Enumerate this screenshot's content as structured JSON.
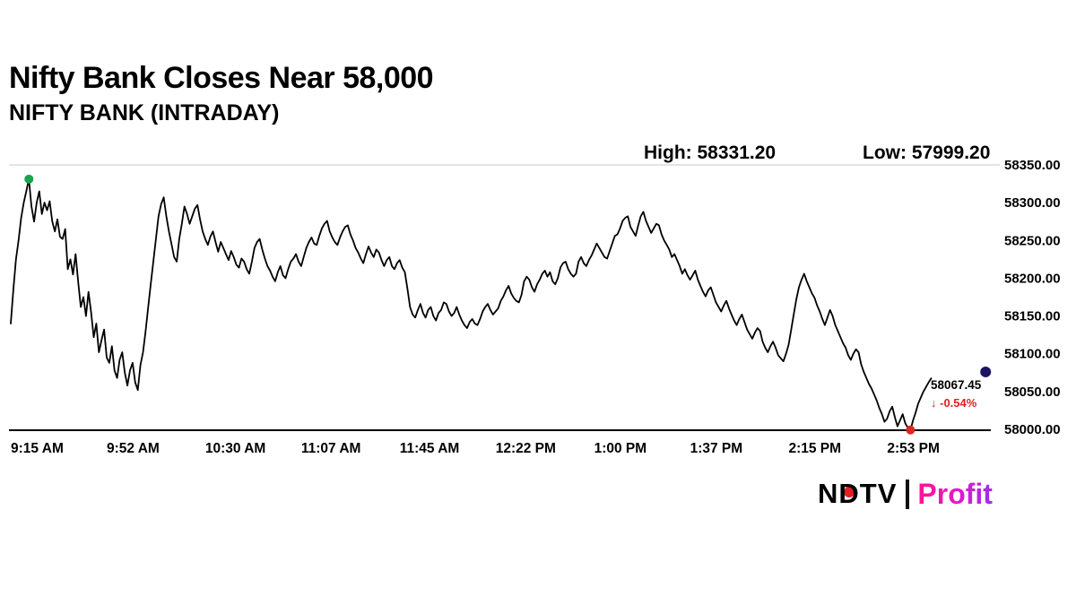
{
  "header": {
    "title": "Nifty Bank Closes Near 58,000",
    "subtitle": "NIFTY BANK (INTRADAY)"
  },
  "stats": {
    "high_label": "High: 58331.20",
    "low_label": "Low: 57999.20"
  },
  "annotations": {
    "last_price": "58067.45",
    "change": "↓ -0.54%",
    "change_color": "#e02020"
  },
  "logo": {
    "brand": "NDTV",
    "product": "Profit"
  },
  "chart_data": {
    "type": "line",
    "title": "NIFTY BANK (INTRADAY)",
    "line_color": "#000000",
    "grid": "top-line-only",
    "high": 58331.2,
    "low": 57999.2,
    "close": 58067.45,
    "change_pct": -0.54,
    "ylim": [
      58000,
      58350
    ],
    "y_ticks": [
      58350,
      58300,
      58250,
      58200,
      58150,
      58100,
      58050,
      58000
    ],
    "y_tick_labels": [
      "58350.00",
      "58300.00",
      "58250.00",
      "58200.00",
      "58150.00",
      "58100.00",
      "58050.00",
      "58000.00"
    ],
    "x_labels": [
      "9:15 AM",
      "9:52 AM",
      "10:30 AM",
      "11:07 AM",
      "11:45 AM",
      "12:22 PM",
      "1:00 PM",
      "1:37 PM",
      "2:15 PM",
      "2:53 PM"
    ],
    "x_ticks_minutes": [
      0,
      37,
      75,
      112,
      150,
      187,
      225,
      262,
      300,
      338
    ],
    "t_max": 378,
    "t_step": 1,
    "markers": [
      {
        "name": "high-dot",
        "t": 7,
        "v": 58331.2,
        "color": "#18a54a",
        "r": 5
      },
      {
        "name": "low-dot",
        "t": 347,
        "v": 57999.2,
        "color": "#e02424",
        "r": 5
      },
      {
        "name": "edge-dot",
        "t": 376,
        "v": 58076,
        "color": "#1b1464",
        "r": 6
      }
    ],
    "values": [
      58140,
      58185,
      58225,
      58250,
      58280,
      58300,
      58315,
      58331.2,
      58295,
      58275,
      58300,
      58315,
      58285,
      58300,
      58290,
      58302,
      58275,
      58262,
      58278,
      58255,
      58252,
      58265,
      58212,
      58225,
      58205,
      58232,
      58195,
      58162,
      58175,
      58150,
      58182,
      58155,
      58122,
      58140,
      58102,
      58118,
      58132,
      58095,
      58088,
      58110,
      58078,
      58068,
      58092,
      58102,
      58075,
      58058,
      58078,
      58088,
      58062,
      58052,
      58085,
      58102,
      58130,
      58162,
      58192,
      58222,
      58252,
      58282,
      58298,
      58307,
      58282,
      58262,
      58245,
      58228,
      58222,
      58252,
      58272,
      58295,
      58285,
      58272,
      58282,
      58292,
      58297,
      58278,
      58262,
      58252,
      58244,
      58255,
      58262,
      58248,
      58235,
      58248,
      58240,
      58232,
      58224,
      58236,
      58228,
      58218,
      58214,
      58226,
      58222,
      58212,
      58206,
      58222,
      58240,
      58248,
      58252,
      58238,
      58226,
      58216,
      58210,
      58202,
      58196,
      58208,
      58216,
      58204,
      58200,
      58212,
      58222,
      58226,
      58232,
      58222,
      58216,
      58228,
      58240,
      58248,
      58254,
      58246,
      58244,
      58256,
      58266,
      58272,
      58276,
      58262,
      58254,
      58248,
      58244,
      58254,
      58262,
      58268,
      58270,
      58258,
      58250,
      58240,
      58234,
      58226,
      58220,
      58232,
      58242,
      58234,
      58228,
      58238,
      58234,
      58224,
      58216,
      58224,
      58228,
      58216,
      58212,
      58220,
      58224,
      58214,
      58208,
      58186,
      58162,
      58152,
      58148,
      58158,
      58166,
      58154,
      58148,
      58158,
      58162,
      58150,
      58144,
      58154,
      58158,
      58168,
      58166,
      58156,
      58150,
      58154,
      58162,
      58152,
      58144,
      58138,
      58134,
      58142,
      58146,
      58140,
      58138,
      58146,
      58156,
      58162,
      58166,
      58158,
      58152,
      58156,
      58160,
      58170,
      58176,
      58184,
      58190,
      58180,
      58174,
      58170,
      58168,
      58178,
      58196,
      58202,
      58198,
      58188,
      58182,
      58192,
      58198,
      58206,
      58210,
      58202,
      58208,
      58196,
      58192,
      58200,
      58214,
      58220,
      58222,
      58212,
      58206,
      58202,
      58206,
      58222,
      58228,
      58220,
      58216,
      58224,
      58230,
      58238,
      58246,
      58240,
      58234,
      58228,
      58226,
      58236,
      58246,
      58256,
      58258,
      58266,
      58276,
      58280,
      58282,
      58268,
      58262,
      58256,
      58270,
      58282,
      58288,
      58276,
      58268,
      58260,
      58266,
      58272,
      58270,
      58258,
      58250,
      58244,
      58238,
      58228,
      58232,
      58224,
      58216,
      58206,
      58212,
      58204,
      58198,
      58204,
      58210,
      58198,
      58190,
      58182,
      58176,
      58184,
      58188,
      58178,
      58168,
      58162,
      58156,
      58164,
      58170,
      58160,
      58152,
      58144,
      58138,
      58146,
      58152,
      58142,
      58132,
      58126,
      58120,
      58128,
      58134,
      58130,
      58116,
      58108,
      58102,
      58110,
      58116,
      58108,
      58098,
      58094,
      58090,
      58100,
      58112,
      58132,
      58152,
      58172,
      58188,
      58198,
      58206,
      58196,
      58188,
      58180,
      58174,
      58164,
      58156,
      58146,
      58138,
      58148,
      58158,
      58150,
      58138,
      58130,
      58122,
      58114,
      58108,
      58098,
      58092,
      58100,
      58106,
      58102,
      58086,
      58076,
      58068,
      58060,
      58054,
      58046,
      58038,
      58028,
      58020,
      58010,
      58014,
      58024,
      58030,
      58016,
      58004,
      58012,
      58020,
      58008,
      58002,
      57999.2,
      58012,
      58022,
      58034,
      58042,
      58050,
      58056,
      58062,
      58067.45
    ]
  }
}
